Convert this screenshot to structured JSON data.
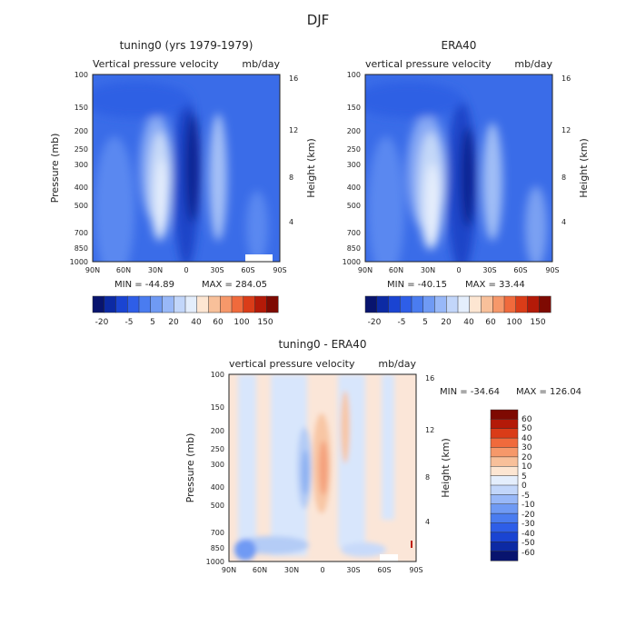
{
  "figure_title": "DJF",
  "chart_data": [
    {
      "type": "heatmap",
      "id": "left",
      "title": "tuning0 (yrs 1979-1979)",
      "subtitle_left": "Vertical pressure velocity",
      "subtitle_right": "mb/day",
      "ylabel": "Pressure (mb)",
      "y2label": "Height (km)",
      "x_ticks": [
        "90N",
        "60N",
        "30N",
        "0",
        "30S",
        "60S",
        "90S"
      ],
      "y_ticks": [
        "100",
        "150",
        "200",
        "250",
        "300",
        "400",
        "500",
        "700",
        "850",
        "1000"
      ],
      "y2_ticks": [
        "16",
        "12",
        "8",
        "4"
      ],
      "min_label": "MIN = -44.89",
      "max_label": "MAX = 284.05",
      "colorbar_labels": [
        "-20",
        "-5",
        "5",
        "20",
        "40",
        "60",
        "100",
        "150"
      ]
    },
    {
      "type": "heatmap",
      "id": "right",
      "title": "ERA40",
      "subtitle_left": "vertical pressure velocity",
      "subtitle_right": "mb/day",
      "ylabel": "Pressure (mb)",
      "y2label": "Height (km)",
      "x_ticks": [
        "90N",
        "60N",
        "30N",
        "0",
        "30S",
        "60S",
        "90S"
      ],
      "y_ticks": [
        "100",
        "150",
        "200",
        "250",
        "300",
        "400",
        "500",
        "700",
        "850",
        "1000"
      ],
      "y2_ticks": [
        "16",
        "12",
        "8",
        "4"
      ],
      "min_label": "MIN = -40.15",
      "max_label": "MAX = 33.44",
      "colorbar_labels": [
        "-20",
        "-5",
        "5",
        "20",
        "40",
        "60",
        "100",
        "150"
      ]
    },
    {
      "type": "heatmap",
      "id": "diff",
      "title": "tuning0 - ERA40",
      "subtitle_left": "vertical pressure velocity",
      "subtitle_right": "mb/day",
      "ylabel": "Pressure (mb)",
      "y2label": "Height (km)",
      "x_ticks": [
        "90N",
        "60N",
        "30N",
        "0",
        "30S",
        "60S",
        "90S"
      ],
      "y_ticks": [
        "100",
        "150",
        "200",
        "250",
        "300",
        "400",
        "500",
        "700",
        "850",
        "1000"
      ],
      "y2_ticks": [
        "16",
        "12",
        "8",
        "4"
      ],
      "min_label": "MIN = -34.64",
      "max_label": "MAX = 126.04",
      "colorbar_labels": [
        "60",
        "50",
        "40",
        "30",
        "20",
        "10",
        "5",
        "0",
        "-5",
        "-10",
        "-20",
        "-30",
        "-40",
        "-50",
        "-60"
      ]
    }
  ],
  "colors": {
    "main_scale": [
      "#08146e",
      "#0c2aa4",
      "#1a44d2",
      "#2e5ee8",
      "#4a7cf0",
      "#6f9af4",
      "#98b8f8",
      "#c2d6fa",
      "#e4eefc",
      "#fde6d2",
      "#f8c09a",
      "#f6986a",
      "#f06a3c",
      "#da3c18",
      "#b41a08",
      "#7e0a02"
    ],
    "diff_scale": [
      "#7e0a02",
      "#b41a08",
      "#da3c18",
      "#f06a3c",
      "#f6986a",
      "#f8c09a",
      "#fde6d2",
      "#e4eefc",
      "#c2d6fa",
      "#98b8f8",
      "#6f9af4",
      "#4a7cf0",
      "#2e5ee8",
      "#1a44d2",
      "#0c2aa4",
      "#08146e"
    ]
  }
}
